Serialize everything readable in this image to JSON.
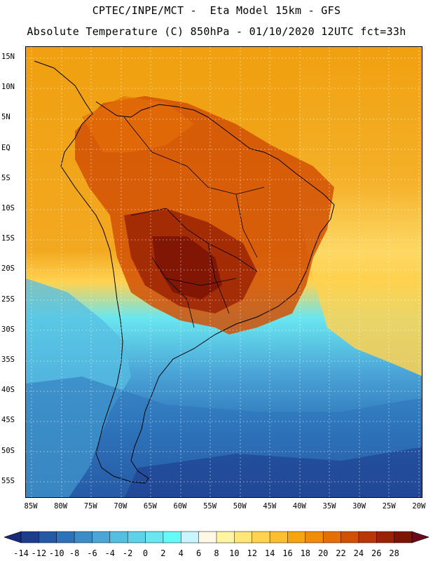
{
  "header": {
    "line1": "CPTEC/INPE/MCT -  Eta Model 15km - GFS",
    "line2": "Absolute Temperature (C) 850hPa - 01/10/2020 12UTC fct=33h"
  },
  "axes": {
    "lat_labels": [
      "15N",
      "10N",
      "5N",
      "EQ",
      "5S",
      "10S",
      "15S",
      "20S",
      "25S",
      "30S",
      "35S",
      "40S",
      "45S",
      "50S",
      "55S"
    ],
    "lon_labels": [
      "85W",
      "80W",
      "75W",
      "70W",
      "65W",
      "60W",
      "55W",
      "50W",
      "45W",
      "40W",
      "35W",
      "30W",
      "25W",
      "20W"
    ],
    "grid": "dotted"
  },
  "colorbar": {
    "labels": [
      "-14",
      "-12",
      "-10",
      "-8",
      "-6",
      "-4",
      "-2",
      "0",
      "2",
      "4",
      "6",
      "8",
      "10",
      "12",
      "14",
      "16",
      "18",
      "20",
      "22",
      "24",
      "26",
      "28"
    ],
    "colors": [
      "#1e3c8c",
      "#245aa5",
      "#2d73b9",
      "#3c8cc8",
      "#4ba5d7",
      "#55bee1",
      "#5fd2eb",
      "#69e6f0",
      "#64fafa",
      "#c8f5ff",
      "#fff8e6",
      "#fff5a0",
      "#ffe678",
      "#ffd250",
      "#ffbe32",
      "#f5a50f",
      "#f08c0a",
      "#e66e05",
      "#d25005",
      "#b93705",
      "#9b2305",
      "#7d1405"
    ],
    "under_color": "#1a2a7a",
    "over_color": "#6b0a1e",
    "units": "C"
  }
}
